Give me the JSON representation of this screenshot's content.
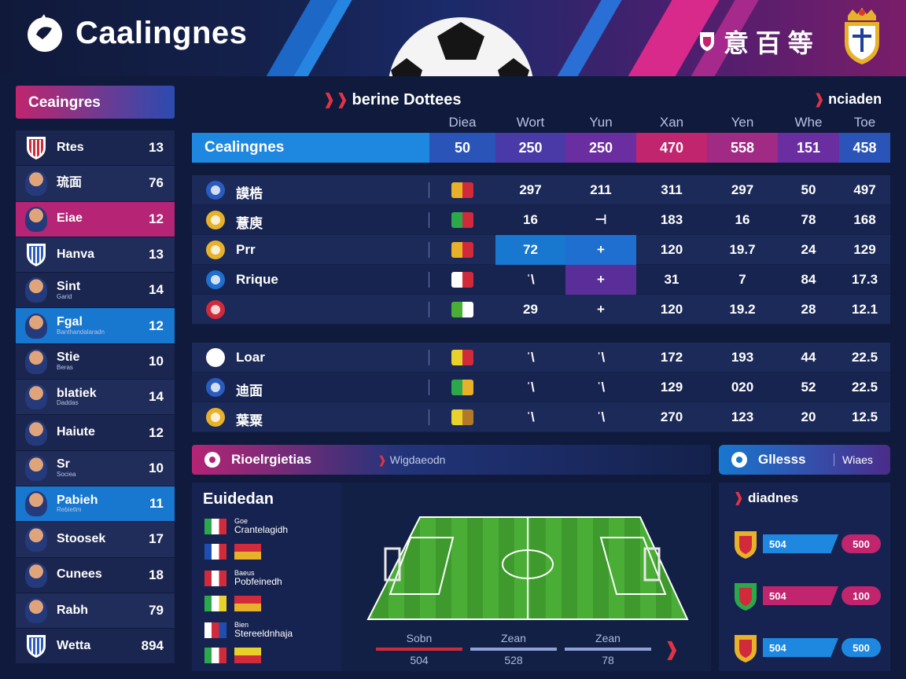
{
  "header": {
    "app_title": "Caalingnes",
    "right_text": "意 百 等"
  },
  "sidebar": {
    "title": "Ceaingres",
    "items": [
      {
        "name": "Rtes",
        "sub": "",
        "value": "13",
        "kind": "shield-red"
      },
      {
        "name": "琉面",
        "sub": "",
        "value": "76",
        "kind": "avatar"
      },
      {
        "name": "Eiae",
        "sub": "",
        "value": "12",
        "kind": "avatar"
      },
      {
        "name": "Hanva",
        "sub": "",
        "value": "13",
        "kind": "shield-blue"
      },
      {
        "name": "Sint",
        "sub": "Garid",
        "value": "14",
        "kind": "avatar"
      },
      {
        "name": "Fgal",
        "sub": "Banthandalaradn",
        "value": "12",
        "kind": "avatar"
      },
      {
        "name": "Stie",
        "sub": "Beras",
        "value": "10",
        "kind": "avatar"
      },
      {
        "name": "blatiek",
        "sub": "Daddas",
        "value": "14",
        "kind": "avatar"
      },
      {
        "name": "Haiute",
        "sub": "",
        "value": "12",
        "kind": "avatar"
      },
      {
        "name": "Sr",
        "sub": "Sociea",
        "value": "10",
        "kind": "avatar"
      },
      {
        "name": "Pabieh",
        "sub": "Rebietlm",
        "value": "11",
        "kind": "avatar"
      },
      {
        "name": "Stoosek",
        "sub": "",
        "value": "17",
        "kind": "avatar"
      },
      {
        "name": "Cunees",
        "sub": "",
        "value": "18",
        "kind": "avatar"
      },
      {
        "name": "Rabh",
        "sub": "",
        "value": "79",
        "kind": "avatar"
      },
      {
        "name": "Wetta",
        "sub": "",
        "value": "894",
        "kind": "shield-blue"
      }
    ]
  },
  "table": {
    "title": "berine Dottees",
    "side_tag": "nciaden",
    "columns": [
      "Diea",
      "Wort",
      "Yun",
      "Xan",
      "Yen",
      "Whe",
      "Toe"
    ],
    "summary": {
      "label": "Cealingnes",
      "values": [
        "50",
        "250",
        "250",
        "470",
        "558",
        "151",
        "458"
      ]
    },
    "rows_top": [
      {
        "name": "謨梏",
        "cells": [
          "297",
          "211",
          "311",
          "297",
          "50",
          "497"
        ]
      },
      {
        "name": "薏庾",
        "cells": [
          "16",
          "⊣",
          "183",
          "16",
          "78",
          "168"
        ]
      },
      {
        "name": "Prr",
        "cells": [
          "72",
          "+",
          "120",
          "19.7",
          "24",
          "129"
        ]
      },
      {
        "name": "Rrique",
        "cells": [
          "ˈ\\",
          "+",
          "31",
          "7",
          "84",
          "17.3"
        ]
      },
      {
        "name": "",
        "cells": [
          "29",
          "+",
          "120",
          "19.2",
          "28",
          "12.1"
        ]
      }
    ],
    "rows_bottom": [
      {
        "name": "Loar",
        "cells": [
          "ˈ\\",
          "ˈ\\",
          "172",
          "193",
          "44",
          "22.5"
        ]
      },
      {
        "name": "迪面",
        "cells": [
          "ˈ\\",
          "ˈ\\",
          "129",
          "020",
          "52",
          "22.5"
        ]
      },
      {
        "name": "葉粟",
        "cells": [
          "ˈ\\",
          "ˈ\\",
          "270",
          "123",
          "20",
          "12.5"
        ]
      }
    ]
  },
  "bottom": {
    "tab_left_label": "Rioelrgietias",
    "tab_left_sub": "Wigdaeodn",
    "tab_right_label": "Gllesss",
    "tab_right_sub": "Wiaes",
    "panel_left_title": "Euidedan",
    "flags": [
      {
        "top": "Goe",
        "bottom": "Crantelagidh"
      },
      {
        "top": "",
        "bottom": ""
      },
      {
        "top": "Baeus",
        "bottom": "Pobfeinedh"
      },
      {
        "top": "",
        "bottom": ""
      },
      {
        "top": "Bien",
        "bottom": "Stereeldnhaja"
      },
      {
        "top": "",
        "bottom": ""
      }
    ],
    "stats": [
      {
        "label": "Sobn",
        "value": "504"
      },
      {
        "label": "Zean",
        "value": "528"
      },
      {
        "label": "Zean",
        "value": "78"
      }
    ],
    "panel_right_title": "diadnes",
    "bars": [
      {
        "a": "504",
        "b": "500"
      },
      {
        "a": "504",
        "b": "100"
      },
      {
        "a": "504",
        "b": "500"
      }
    ]
  },
  "colors": {
    "accent_blue": "#1e88e0",
    "accent_pink": "#c0256e",
    "accent_purple": "#6a2ea0",
    "background": "#0f1a3c"
  }
}
